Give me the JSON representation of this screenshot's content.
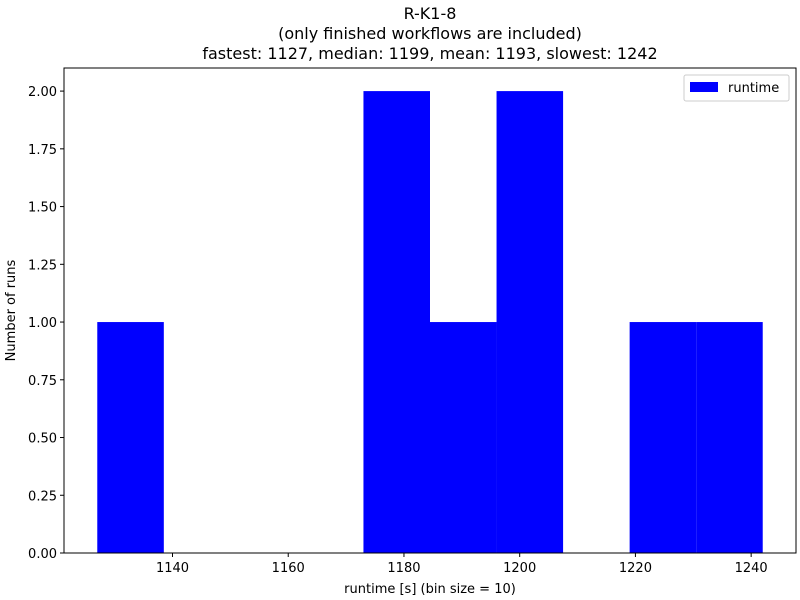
{
  "chart_data": {
    "type": "bar",
    "title_lines": [
      "R-K1-8",
      "(only finished workflows are included)",
      "fastest: 1127, median: 1199, mean: 1193, slowest: 1242"
    ],
    "xlabel": "runtime [s] (bin size = 10)",
    "ylabel": "Number of runs",
    "xlim": [
      1121.25,
      1247.75
    ],
    "ylim": [
      0,
      2.1
    ],
    "xticks": [
      1140,
      1160,
      1180,
      1200,
      1220,
      1240
    ],
    "yticks": [
      0.0,
      0.25,
      0.5,
      0.75,
      1.0,
      1.25,
      1.5,
      1.75,
      2.0
    ],
    "ytick_labels": [
      "0.00",
      "0.25",
      "0.50",
      "0.75",
      "1.00",
      "1.25",
      "1.50",
      "1.75",
      "2.00"
    ],
    "bin_edges": [
      1127.0,
      1138.5,
      1150.0,
      1161.5,
      1173.0,
      1184.5,
      1196.0,
      1207.5,
      1219.0,
      1230.5,
      1242.0
    ],
    "counts": [
      1,
      0,
      0,
      0,
      2,
      1,
      2,
      0,
      1,
      1
    ],
    "bar_color": "#0000ff",
    "legend": {
      "position": "top-right",
      "entries": [
        {
          "label": "runtime",
          "color": "#0000ff"
        }
      ]
    },
    "grid": false
  }
}
